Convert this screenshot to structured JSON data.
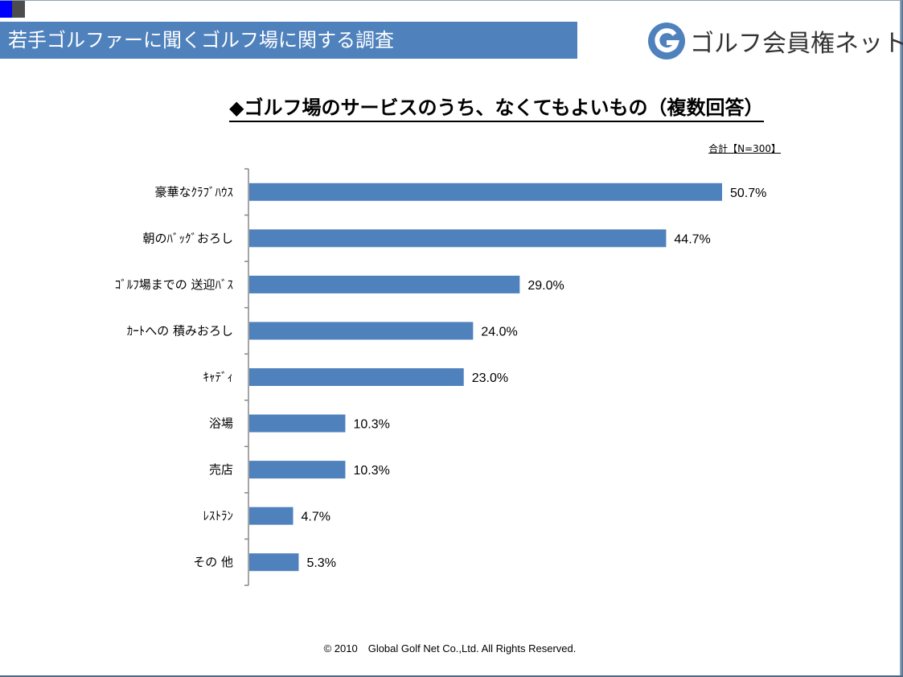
{
  "header": {
    "title": "若手ゴルファーに聞くゴルフ場に関する調査"
  },
  "logo": {
    "icon": "g-circle-icon",
    "letter": "G",
    "text": "ゴルフ会員権ネット",
    "color": "#4f81bd"
  },
  "chart_data": {
    "type": "bar",
    "orientation": "horizontal",
    "title": "◆ゴルフ場のサービスのうち、なくてもよいもの（複数回答）",
    "note": "合計【N=300】",
    "categories": [
      "豪華なｸﾗﾌﾞﾊｳｽ",
      "朝のﾊﾞｯｸﾞおろし",
      "ｺﾞﾙﾌ場までの 送迎ﾊﾞｽ",
      "ｶｰﾄへの 積みおろし",
      "ｷｬﾃﾞｨ",
      "浴場",
      "売店",
      "ﾚｽﾄﾗﾝ",
      "その 他"
    ],
    "values": [
      50.7,
      44.7,
      29.0,
      24.0,
      23.0,
      10.3,
      10.3,
      4.7,
      5.3
    ],
    "value_labels": [
      "50.7%",
      "44.7%",
      "29.0%",
      "24.0%",
      "23.0%",
      "10.3%",
      "10.3%",
      "4.7%",
      "5.3%"
    ],
    "unit": "%",
    "xlabel": "",
    "ylabel": "",
    "xlim": [
      0,
      55
    ],
    "grid": false,
    "legend": "none",
    "bar_color": "#4f81bd"
  },
  "footer": {
    "copyright": "© 2010　Global Golf Net Co.,Ltd. All Rights Reserved."
  }
}
